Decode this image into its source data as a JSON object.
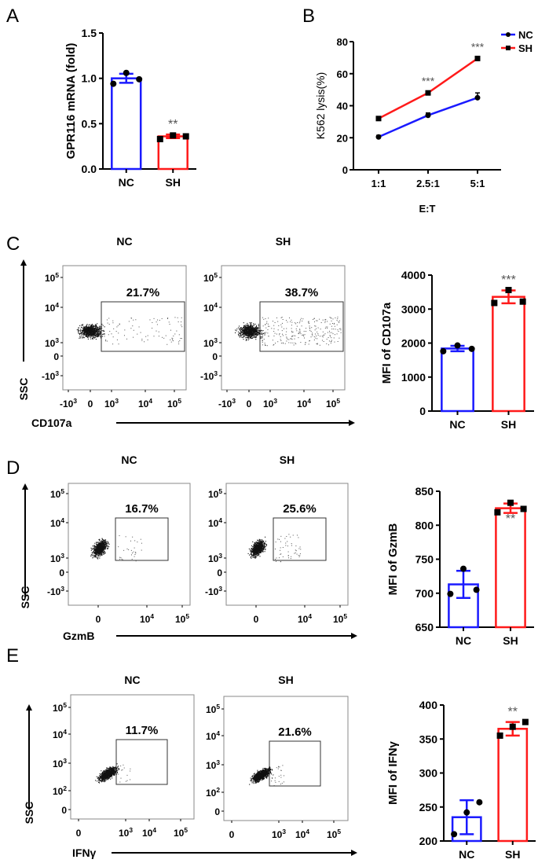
{
  "colors": {
    "nc": "#1a1aff",
    "sh": "#ff1a1a",
    "axis": "#000000",
    "star": "#555555"
  },
  "panels": {
    "A": {
      "letter": "A"
    },
    "B": {
      "letter": "B"
    },
    "C": {
      "letter": "C",
      "flow_ylabel": "SSC",
      "flow_xlabel": "CD107a",
      "groups": [
        "NC",
        "SH"
      ],
      "gate_pct": [
        "21.7%",
        "38.7%"
      ],
      "y_ticks": [
        "10^5",
        "10^4",
        "10^3",
        "0",
        "-10^3"
      ],
      "x_ticks": [
        "-10^3",
        "0",
        "10^3",
        "10^4",
        "10^5"
      ]
    },
    "D": {
      "letter": "D",
      "flow_ylabel": "SSC",
      "flow_xlabel": "GzmB",
      "groups": [
        "NC",
        "SH"
      ],
      "gate_pct": [
        "16.7%",
        "25.6%"
      ],
      "y_ticks": [
        "10^5",
        "10^4",
        "10^3",
        "0",
        "-10^3"
      ],
      "x_ticks": [
        "0",
        "10^4",
        "10^5"
      ]
    },
    "E": {
      "letter": "E",
      "flow_ylabel": "SSC",
      "flow_xlabel": "IFNγ",
      "groups": [
        "NC",
        "SH"
      ],
      "gate_pct": [
        "11.7%",
        "21.6%"
      ],
      "y_ticks": [
        "10^5",
        "10^4",
        "10^3",
        "10^2",
        "0"
      ],
      "x_ticks": [
        "0",
        "10^3",
        "10^4",
        "10^5"
      ]
    }
  },
  "chart_data": [
    {
      "id": "A",
      "type": "bar",
      "title": "",
      "xlabel": "",
      "ylabel": "GPR116  mRNA (fold)",
      "categories": [
        "NC",
        "SH"
      ],
      "values": [
        1.0,
        0.36
      ],
      "errors": [
        0.05,
        0.02
      ],
      "points": [
        [
          0.94,
          1.06,
          0.99
        ],
        [
          0.33,
          0.37,
          0.36
        ]
      ],
      "ylim": [
        0,
        1.5
      ],
      "yticks": [
        "0.0",
        "0.5",
        "1.0",
        "1.5"
      ],
      "significance": [
        "",
        "**"
      ]
    },
    {
      "id": "B",
      "type": "line",
      "title": "",
      "xlabel": "E:T",
      "ylabel": "K562 lysis(%)",
      "categories": [
        "1:1",
        "2.5:1",
        "5:1"
      ],
      "series": [
        {
          "name": "NC",
          "values": [
            20.5,
            34,
            45
          ],
          "errors": [
            1,
            1.5,
            3
          ]
        },
        {
          "name": "SH",
          "values": [
            32,
            48,
            69.5
          ],
          "errors": [
            0.8,
            1,
            1
          ]
        }
      ],
      "ylim": [
        0,
        80
      ],
      "yticks": [
        "0",
        "20",
        "40",
        "60",
        "80"
      ],
      "significance": [
        "",
        "***",
        "***"
      ],
      "legend": "top-right"
    },
    {
      "id": "C",
      "type": "bar",
      "ylabel": "MFI of CD107a",
      "categories": [
        "NC",
        "SH"
      ],
      "values": [
        1840,
        3360
      ],
      "errors": [
        80,
        190
      ],
      "points": [
        [
          1760,
          1930,
          1830
        ],
        [
          3180,
          3560,
          3220
        ]
      ],
      "ylim": [
        0,
        4000
      ],
      "yticks": [
        "0",
        "1000",
        "2000",
        "3000",
        "4000"
      ],
      "significance": [
        "",
        "***"
      ]
    },
    {
      "id": "D",
      "type": "bar",
      "ylabel": "MFI of GzmB",
      "categories": [
        "NC",
        "SH"
      ],
      "values": [
        713,
        825
      ],
      "errors": [
        20,
        7
      ],
      "points": [
        [
          699,
          736,
          705
        ],
        [
          819,
          833,
          824
        ]
      ],
      "ylim": [
        650,
        850
      ],
      "yticks": [
        "650",
        "700",
        "750",
        "800",
        "850"
      ],
      "significance": [
        "",
        "**"
      ]
    },
    {
      "id": "E",
      "type": "bar",
      "ylabel": "MFI of IFNγ",
      "categories": [
        "NC",
        "SH"
      ],
      "values": [
        235,
        365
      ],
      "errors": [
        25,
        10
      ],
      "points": [
        [
          210,
          242,
          257
        ],
        [
          355,
          368,
          375
        ]
      ],
      "ylim": [
        200,
        400
      ],
      "yticks": [
        "200",
        "250",
        "300",
        "350",
        "400"
      ],
      "significance": [
        "",
        "**"
      ]
    }
  ]
}
